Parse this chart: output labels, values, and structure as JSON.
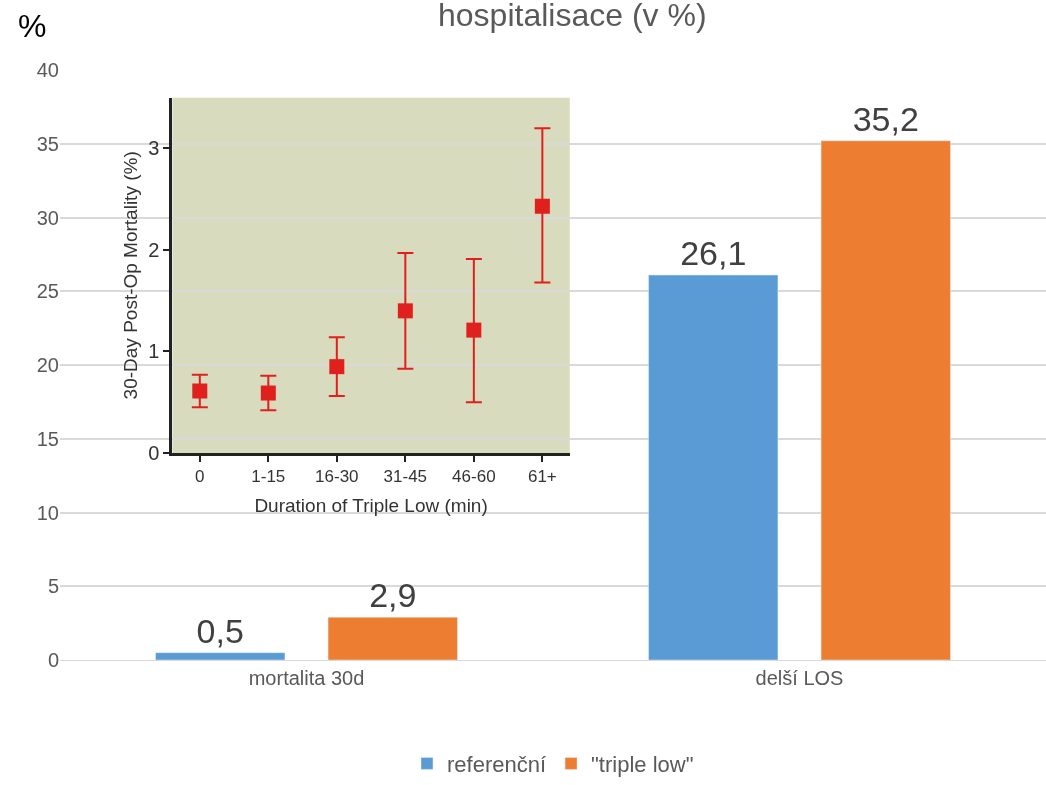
{
  "chart_data": [
    {
      "type": "bar",
      "title": "hospitalisace (v %)",
      "ylabel": "%",
      "categories": [
        "mortalita 30d",
        "delší LOS"
      ],
      "series": [
        {
          "name": "referenční",
          "color": "#5b9bd5",
          "values": [
            0.5,
            26.1
          ],
          "value_labels": [
            "0,5",
            "26,1"
          ]
        },
        {
          "name": "\"triple low\"",
          "color": "#ed7d31",
          "values": [
            2.9,
            35.2
          ],
          "value_labels": [
            "2,9",
            "35,2"
          ]
        }
      ],
      "ylim": [
        0,
        40
      ],
      "yticks": [
        0,
        5,
        10,
        15,
        20,
        25,
        30,
        35,
        40
      ],
      "grid": "y",
      "legend": "bottom"
    },
    {
      "type": "scatter",
      "xlabel": "Duration of Triple Low (min)",
      "ylabel": "30-Day Post-Op Mortality (%)",
      "categories": [
        "0",
        "1-15",
        "16-30",
        "31-45",
        "46-60",
        "61+"
      ],
      "values": [
        0.61,
        0.59,
        0.85,
        1.4,
        1.21,
        2.43
      ],
      "errors": [
        [
          0.45,
          0.77
        ],
        [
          0.42,
          0.76
        ],
        [
          0.56,
          1.14
        ],
        [
          0.83,
          1.97
        ],
        [
          0.5,
          1.91
        ],
        [
          1.68,
          3.2
        ]
      ],
      "color": "#e0201c",
      "marker": "square",
      "ylim": [
        0,
        3.5
      ],
      "yticks": [
        0,
        1,
        2,
        3
      ],
      "grid": false
    }
  ]
}
